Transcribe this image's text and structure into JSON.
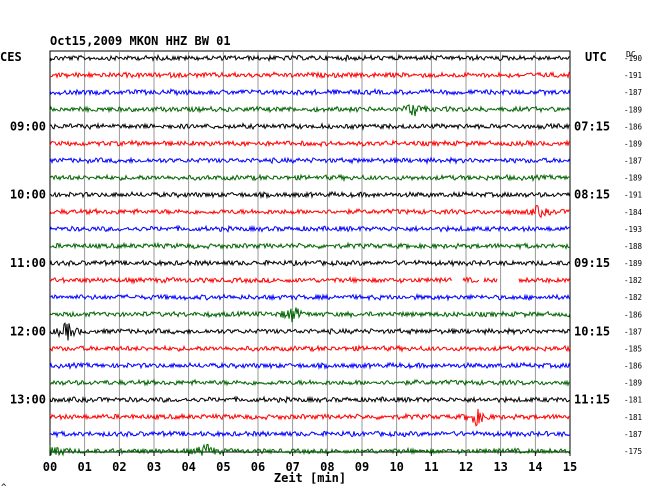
{
  "chart_data": {
    "type": "line",
    "title": "Oct15,2009   MKON HHZ BW 01",
    "left_axis_label": "CES",
    "right_axis_label": "UTC",
    "dc_label": "DC",
    "xlabel": "Zeit [min]",
    "x_ticks": [
      "00",
      "01",
      "02",
      "03",
      "04",
      "05",
      "06",
      "07",
      "08",
      "09",
      "10",
      "11",
      "12",
      "13",
      "14",
      "15"
    ],
    "x_range": [
      0,
      15
    ],
    "grid": true,
    "trace_colors": [
      "#000000",
      "#ff0000",
      "#0000ff",
      "#006400"
    ],
    "left_time_labels": [
      {
        "trace": 4,
        "label": "09:00"
      },
      {
        "trace": 8,
        "label": "10:00"
      },
      {
        "trace": 12,
        "label": "11:00"
      },
      {
        "trace": 16,
        "label": "12:00"
      },
      {
        "trace": 20,
        "label": "13:00"
      }
    ],
    "right_time_labels": [
      {
        "trace": 4,
        "label": "07:15"
      },
      {
        "trace": 8,
        "label": "08:15"
      },
      {
        "trace": 12,
        "label": "09:15"
      },
      {
        "trace": 16,
        "label": "10:15"
      },
      {
        "trace": 20,
        "label": "11:15"
      }
    ],
    "dc_offsets": [
      "-190",
      "-191",
      "-187",
      "-189",
      "-186",
      "-189",
      "-187",
      "-189",
      "-191",
      "-184",
      "-193",
      "-188",
      "-189",
      "-182",
      "-182",
      "-186",
      "-187",
      "-185",
      "-186",
      "-189",
      "-181",
      "-181",
      "-187",
      "-175"
    ],
    "events": [
      {
        "trace": 3,
        "minute": 10.5,
        "amplitude": 7
      },
      {
        "trace": 9,
        "minute": 14.1,
        "amplitude": 5
      },
      {
        "trace": 15,
        "minute": 7.0,
        "amplitude": 8
      },
      {
        "trace": 16,
        "minute": 0.5,
        "amplitude": 9
      },
      {
        "trace": 21,
        "minute": 12.3,
        "amplitude": 8
      },
      {
        "trace": 23,
        "minute": 0.1,
        "amplitude": 9
      },
      {
        "trace": 23,
        "minute": 4.5,
        "amplitude": 7
      }
    ],
    "gaps": [
      {
        "trace": 13,
        "from": 11.6,
        "to": 11.9
      },
      {
        "trace": 13,
        "from": 12.4,
        "to": 12.5
      },
      {
        "trace": 13,
        "from": 12.9,
        "to": 13.5
      }
    ]
  },
  "footer_mark": "^"
}
